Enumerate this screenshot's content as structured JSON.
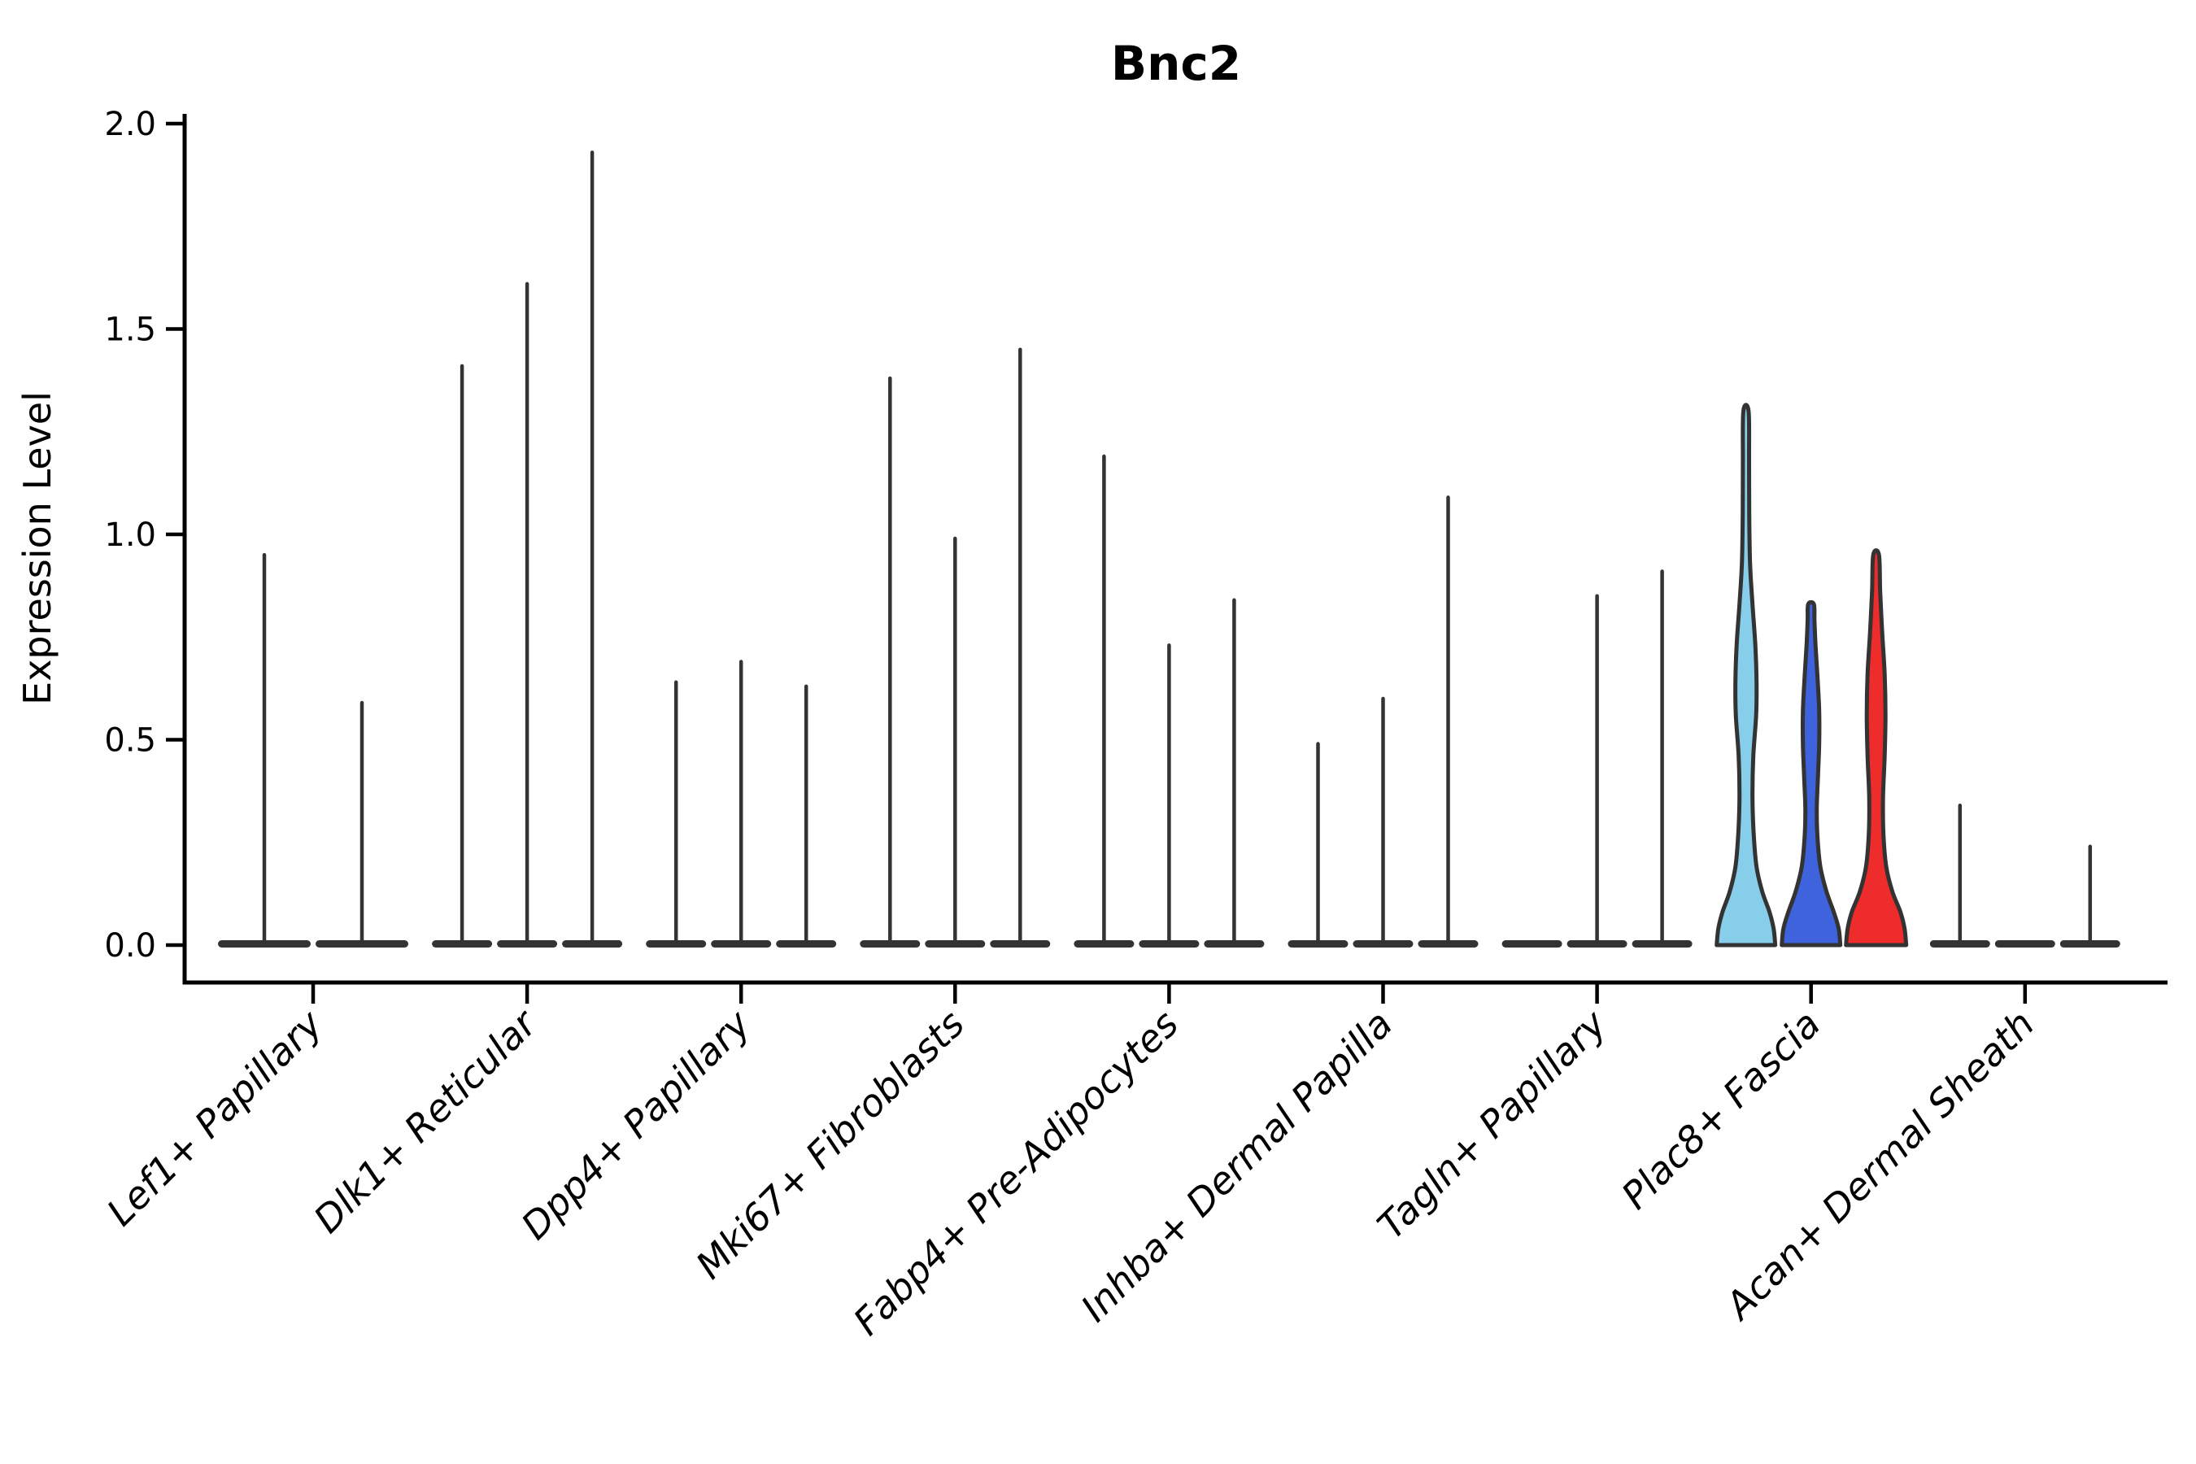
{
  "chart_data": {
    "type": "violin",
    "title": "Bnc2",
    "ylabel": "Expression Level",
    "xlabel": "",
    "ylim": [
      0,
      2.0
    ],
    "grid": false,
    "legend": "none",
    "yticks": [
      {
        "value": 0.0,
        "label": "0.0"
      },
      {
        "value": 0.5,
        "label": "0.5"
      },
      {
        "value": 1.0,
        "label": "1.0"
      },
      {
        "value": 1.5,
        "label": "1.5"
      },
      {
        "value": 2.0,
        "label": "2.0"
      }
    ],
    "categories": [
      "Lef1+ Papillary",
      "Dlk1+ Reticular",
      "Dpp4+ Papillary",
      "Mki67+ Fibroblasts",
      "Fabp4+ Pre-Adipocytes",
      "Inhba+ Dermal Papilla",
      "Tagln+ Papillary",
      "Plac8+ Fascia",
      "Acan+ Dermal Sheath"
    ],
    "groups": [
      {
        "category": "Lef1+ Papillary",
        "violins": [
          {
            "max": 0.95,
            "style": "spike"
          },
          {
            "max": 0.59,
            "style": "spike"
          }
        ]
      },
      {
        "category": "Dlk1+ Reticular",
        "violins": [
          {
            "max": 1.41,
            "style": "spike"
          },
          {
            "max": 1.61,
            "style": "spike"
          },
          {
            "max": 1.93,
            "style": "spike"
          }
        ]
      },
      {
        "category": "Dpp4+ Papillary",
        "violins": [
          {
            "max": 0.64,
            "style": "spike"
          },
          {
            "max": 0.69,
            "style": "spike"
          },
          {
            "max": 0.63,
            "style": "spike"
          }
        ]
      },
      {
        "category": "Mki67+ Fibroblasts",
        "violins": [
          {
            "max": 1.38,
            "style": "spike"
          },
          {
            "max": 0.99,
            "style": "spike"
          },
          {
            "max": 1.45,
            "style": "spike"
          }
        ]
      },
      {
        "category": "Fabp4+ Pre-Adipocytes",
        "violins": [
          {
            "max": 1.19,
            "style": "spike"
          },
          {
            "max": 0.73,
            "style": "spike"
          },
          {
            "max": 0.84,
            "style": "spike"
          }
        ]
      },
      {
        "category": "Inhba+ Dermal Papilla",
        "violins": [
          {
            "max": 0.49,
            "style": "spike"
          },
          {
            "max": 0.6,
            "style": "spike"
          },
          {
            "max": 1.09,
            "style": "spike"
          }
        ]
      },
      {
        "category": "Tagln+ Papillary",
        "violins": [
          {
            "max": 0.0,
            "style": "spike"
          },
          {
            "max": 0.85,
            "style": "spike"
          },
          {
            "max": 0.91,
            "style": "spike"
          }
        ]
      },
      {
        "category": "Plac8+ Fascia",
        "violins": [
          {
            "max": 1.3,
            "style": "violin",
            "color": "#87CEEB",
            "profile": [
              [
                0,
                36
              ],
              [
                0.04,
                34
              ],
              [
                0.08,
                29
              ],
              [
                0.13,
                20
              ],
              [
                0.19,
                13
              ],
              [
                0.27,
                9.5
              ],
              [
                0.36,
                8
              ],
              [
                0.46,
                9
              ],
              [
                0.56,
                12.5
              ],
              [
                0.64,
                13
              ],
              [
                0.73,
                11.5
              ],
              [
                0.83,
                8
              ],
              [
                0.93,
                5
              ],
              [
                1.05,
                4
              ],
              [
                1.18,
                3.8
              ],
              [
                1.3,
                3.2
              ]
            ]
          },
          {
            "max": 0.83,
            "style": "violin",
            "color": "#3E63DC",
            "profile": [
              [
                0,
                36
              ],
              [
                0.04,
                34
              ],
              [
                0.08,
                28
              ],
              [
                0.13,
                19
              ],
              [
                0.19,
                11.5
              ],
              [
                0.26,
                8
              ],
              [
                0.33,
                7
              ],
              [
                0.41,
                8.5
              ],
              [
                0.49,
                10
              ],
              [
                0.57,
                10
              ],
              [
                0.65,
                8
              ],
              [
                0.73,
                5.5
              ],
              [
                0.79,
                4.2
              ],
              [
                0.83,
                3.5
              ]
            ]
          },
          {
            "max": 0.95,
            "style": "violin",
            "color": "#EE2C2C",
            "profile": [
              [
                0,
                37
              ],
              [
                0.04,
                35
              ],
              [
                0.08,
                30
              ],
              [
                0.13,
                20
              ],
              [
                0.19,
                12.5
              ],
              [
                0.27,
                9
              ],
              [
                0.36,
                8.5
              ],
              [
                0.46,
                10.5
              ],
              [
                0.56,
                11.5
              ],
              [
                0.66,
                10.5
              ],
              [
                0.76,
                7.5
              ],
              [
                0.86,
                5
              ],
              [
                0.95,
                3.5
              ]
            ]
          }
        ]
      },
      {
        "category": "Acan+ Dermal Sheath",
        "violins": [
          {
            "max": 0.34,
            "style": "spike"
          },
          {
            "max": 0.0,
            "style": "spike"
          },
          {
            "max": 0.24,
            "style": "spike"
          }
        ]
      }
    ],
    "styles": {
      "spike_color": "#333333",
      "edge_color": "#333333",
      "axis_color": "#000000"
    }
  }
}
